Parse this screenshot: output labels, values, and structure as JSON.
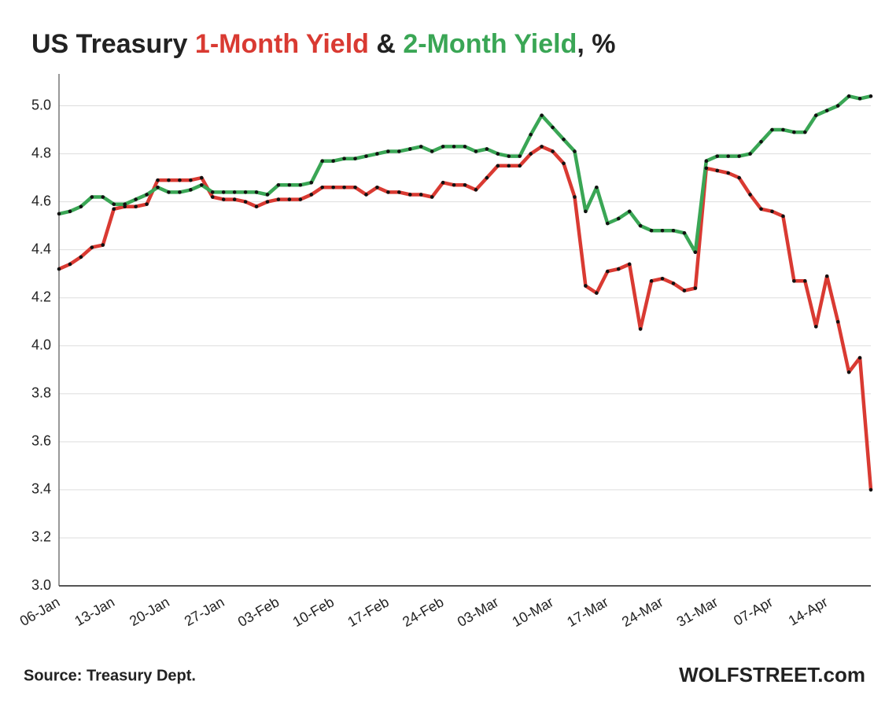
{
  "chart_data": {
    "type": "line",
    "title_start": "US Treasury",
    "title_join": "&",
    "title_end": ", %",
    "source": "Source: Treasury Dept.",
    "brand": "WOLFSTREET.com",
    "categories": [
      "06-Jan",
      null,
      null,
      null,
      null,
      "13-Jan",
      null,
      null,
      null,
      null,
      "20-Jan",
      null,
      null,
      null,
      null,
      "27-Jan",
      null,
      null,
      null,
      null,
      "03-Feb",
      null,
      null,
      null,
      null,
      "10-Feb",
      null,
      null,
      null,
      null,
      "17-Feb",
      null,
      null,
      null,
      null,
      "24-Feb",
      null,
      null,
      null,
      null,
      "03-Mar",
      null,
      null,
      null,
      null,
      "10-Mar",
      null,
      null,
      null,
      null,
      "17-Mar",
      null,
      null,
      null,
      null,
      "24-Mar",
      null,
      null,
      null,
      null,
      "31-Mar",
      null,
      null,
      null,
      null,
      "07-Apr",
      null,
      null,
      null,
      null,
      "14-Apr",
      null,
      null,
      null,
      null
    ],
    "series": [
      {
        "name": "1-Month Yield",
        "color": "#d93a32",
        "values": [
          4.32,
          4.34,
          4.37,
          4.41,
          4.42,
          4.57,
          4.58,
          4.58,
          4.59,
          4.69,
          4.69,
          4.69,
          4.69,
          4.7,
          4.62,
          4.61,
          4.61,
          4.6,
          4.58,
          4.6,
          4.61,
          4.61,
          4.61,
          4.63,
          4.66,
          4.66,
          4.66,
          4.66,
          4.63,
          4.66,
          4.64,
          4.64,
          4.63,
          4.63,
          4.62,
          4.68,
          4.67,
          4.67,
          4.65,
          4.7,
          4.75,
          4.75,
          4.75,
          4.8,
          4.83,
          4.81,
          4.76,
          4.62,
          4.25,
          4.22,
          4.31,
          4.32,
          4.34,
          4.07,
          4.27,
          4.28,
          4.26,
          4.23,
          4.24,
          4.74,
          4.73,
          4.72,
          4.7,
          4.63,
          4.57,
          4.56,
          4.54,
          4.27,
          4.27,
          4.08,
          4.29,
          4.1,
          3.89,
          3.95,
          3.4
        ]
      },
      {
        "name": "2-Month Yield",
        "color": "#3aa655",
        "values": [
          4.55,
          4.56,
          4.58,
          4.62,
          4.62,
          4.59,
          4.59,
          4.61,
          4.63,
          4.66,
          4.64,
          4.64,
          4.65,
          4.67,
          4.64,
          4.64,
          4.64,
          4.64,
          4.64,
          4.63,
          4.67,
          4.67,
          4.67,
          4.68,
          4.77,
          4.77,
          4.78,
          4.78,
          4.79,
          4.8,
          4.81,
          4.81,
          4.82,
          4.83,
          4.81,
          4.83,
          4.83,
          4.83,
          4.81,
          4.82,
          4.8,
          4.79,
          4.79,
          4.88,
          4.96,
          4.91,
          4.86,
          4.81,
          4.56,
          4.66,
          4.51,
          4.53,
          4.56,
          4.5,
          4.48,
          4.48,
          4.48,
          4.47,
          4.39,
          4.77,
          4.79,
          4.79,
          4.79,
          4.8,
          4.85,
          4.9,
          4.9,
          4.89,
          4.89,
          4.96,
          4.98,
          5.0,
          5.04,
          5.03,
          5.04
        ]
      }
    ],
    "marker_color": "#111111",
    "ylim": [
      3,
      5.1
    ],
    "yticks": [
      {
        "value": 3,
        "label": "3.0"
      },
      3.2,
      3.4,
      3.6,
      3.8,
      {
        "value": 4,
        "label": "4.0"
      },
      4.2,
      4.4,
      4.6,
      4.8,
      {
        "value": 5,
        "label": "5.0"
      }
    ],
    "grid": true
  }
}
